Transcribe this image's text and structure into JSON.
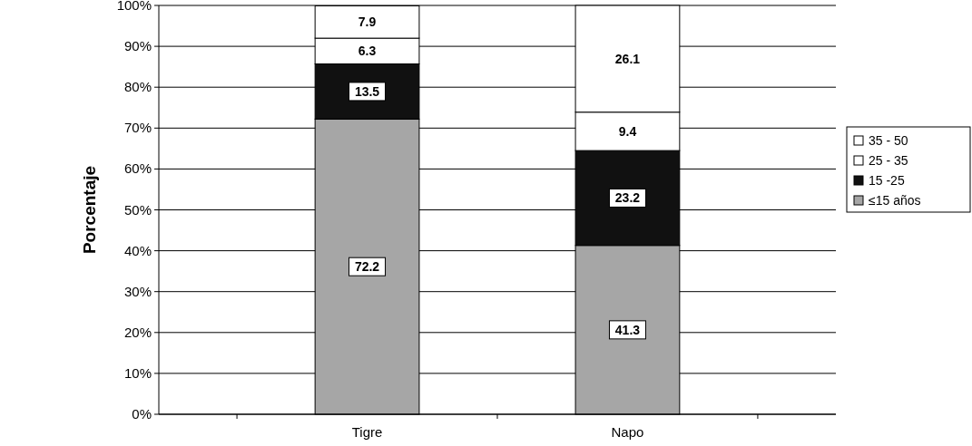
{
  "chart_data": {
    "type": "bar",
    "stacked": true,
    "ylabel": "Porcentaje",
    "categories": [
      "Tigre",
      "Napo"
    ],
    "series": [
      {
        "name": "≤15 años",
        "color": "#a6a6a6",
        "values": [
          72.2,
          41.3
        ]
      },
      {
        "name": "15 -25",
        "color": "#111111",
        "values": [
          13.5,
          23.2
        ]
      },
      {
        "name": "25 - 35",
        "color": "#ffffff",
        "values": [
          6.3,
          9.4
        ]
      },
      {
        "name": "35 - 50",
        "color": "#ffffff",
        "values": [
          7.9,
          26.1
        ]
      }
    ],
    "ylim": [
      0,
      100
    ],
    "yticks": [
      {
        "value": 0,
        "label": "0%"
      },
      {
        "value": 10,
        "label": "10%"
      },
      {
        "value": 20,
        "label": "20%"
      },
      {
        "value": 30,
        "label": "30%"
      },
      {
        "value": 40,
        "label": "40%"
      },
      {
        "value": 50,
        "label": "50%"
      },
      {
        "value": 60,
        "label": "60%"
      },
      {
        "value": 70,
        "label": "70%"
      },
      {
        "value": 80,
        "label": "80%"
      },
      {
        "value": 90,
        "label": "90%"
      },
      {
        "value": 100,
        "label": "100%"
      }
    ],
    "grid": "y",
    "legend": "right",
    "data_labels": true
  }
}
